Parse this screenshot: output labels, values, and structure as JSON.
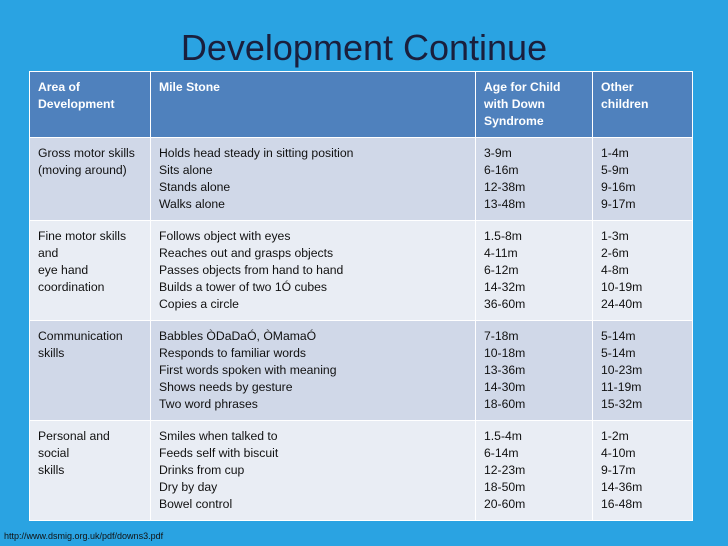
{
  "title": "Development Continue",
  "table": {
    "header": [
      [
        "Area of",
        "Development"
      ],
      [
        "Mile Stone"
      ],
      [
        "Age for Child",
        "with Down",
        "Syndrome"
      ],
      [
        "Other",
        "children"
      ]
    ],
    "rows": [
      [
        [
          "Gross motor skills",
          "(moving around)"
        ],
        [
          "Holds head steady in sitting position",
          "Sits alone",
          "Stands alone",
          "Walks alone"
        ],
        [
          "3-9m",
          "6-16m",
          "12-38m",
          "13-48m"
        ],
        [
          "1-4m",
          "5-9m",
          "9-16m",
          "9-17m"
        ]
      ],
      [
        [
          "Fine motor skills",
          "and",
          "eye hand",
          "coordination"
        ],
        [
          "Follows object with eyes",
          "Reaches out and grasps objects",
          "Passes objects from hand to hand",
          "Builds a tower of two 1Ó cubes",
          "Copies a circle"
        ],
        [
          "1.5-8m",
          "4-11m",
          "6-12m",
          "14-32m",
          "36-60m"
        ],
        [
          "1-3m",
          "2-6m",
          "4-8m",
          "10-19m",
          "24-40m"
        ]
      ],
      [
        [
          "Communication",
          "skills"
        ],
        [
          "Babbles ÒDaDaÓ, ÒMamaÓ",
          "Responds to familiar words",
          "First words spoken with meaning",
          "Shows needs by gesture",
          "Two word phrases"
        ],
        [
          "7-18m",
          "10-18m",
          "13-36m",
          "14-30m",
          "18-60m"
        ],
        [
          "5-14m",
          "5-14m",
          "10-23m",
          "11-19m",
          "15-32m"
        ]
      ],
      [
        [
          "Personal and",
          "social",
          "skills"
        ],
        [
          "Smiles when talked to",
          "Feeds self with biscuit",
          "Drinks from cup",
          "Dry by day",
          "Bowel control"
        ],
        [
          "1.5-4m",
          "6-14m",
          "12-23m",
          "18-50m",
          "20-60m"
        ],
        [
          "1-2m",
          "4-10m",
          "9-17m",
          "14-36m",
          "16-48m"
        ]
      ]
    ]
  },
  "footer": "http://www.dsmig.org.uk/pdf/downs3.pdf"
}
